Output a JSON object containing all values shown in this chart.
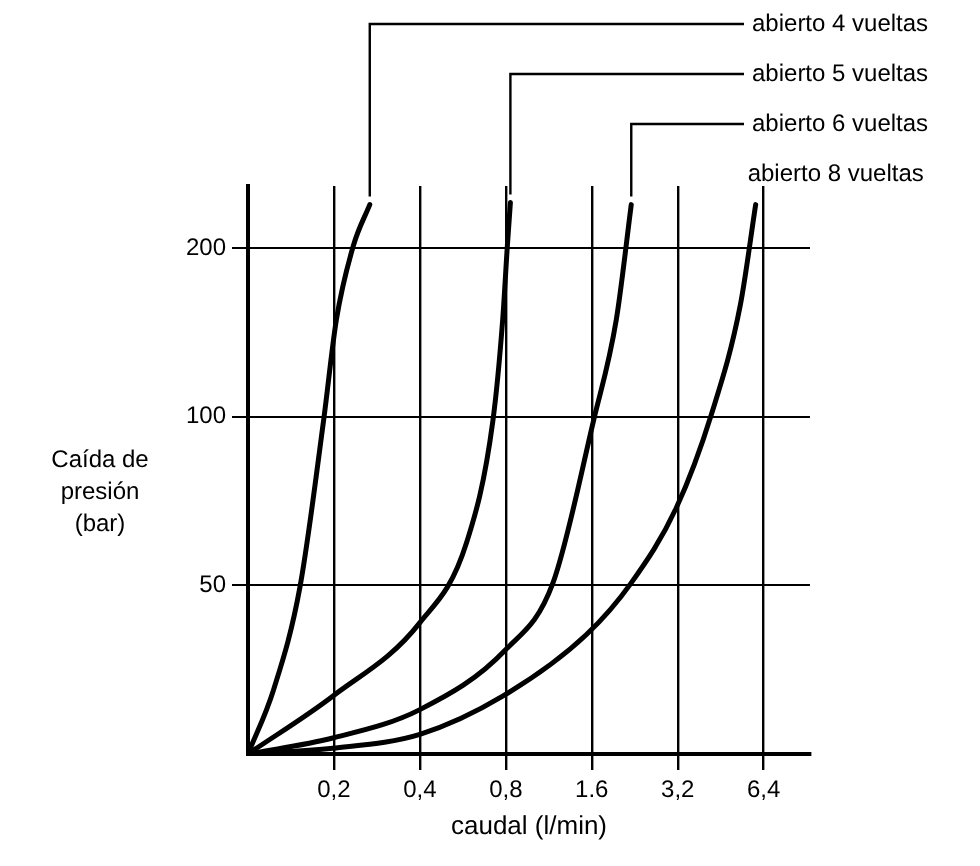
{
  "chart_data": {
    "type": "line",
    "xlabel": "caudal (l/min)",
    "ylabel": "Caída de presión (bar)",
    "log": "xy",
    "grid": true,
    "legend": false,
    "marker": "none",
    "line_style": "solid",
    "xlim": [
      0.1,
      9.3
    ],
    "ylim": [
      25,
      258
    ],
    "xticks": [
      {
        "value": 0.2,
        "label": "0,2"
      },
      {
        "value": 0.4,
        "label": "0,4"
      },
      {
        "value": 0.8,
        "label": "0,8"
      },
      {
        "value": 1.6,
        "label": "1.6"
      },
      {
        "value": 3.2,
        "label": "3,2"
      },
      {
        "value": 6.4,
        "label": "6,4"
      }
    ],
    "yticks": [
      50,
      100,
      200
    ],
    "series": [
      {
        "name": "abierto 4 vueltas",
        "color": "#000000",
        "x": [
          0.1,
          0.123,
          0.152,
          0.184,
          0.204,
          0.234,
          0.267
        ],
        "values": [
          25,
          32.6,
          49.6,
          98.5,
          149,
          202,
          239
        ]
      },
      {
        "name": "abierto 5 vueltas",
        "color": "#000000",
        "x": [
          0.1,
          0.198,
          0.4,
          0.583,
          0.72,
          0.78,
          0.81,
          0.83
        ],
        "values": [
          25,
          31.7,
          42.9,
          59.6,
          98,
          149,
          202,
          241
        ]
      },
      {
        "name": "abierto 6 vueltas",
        "color": "#000000",
        "x": [
          0.1,
          0.198,
          0.4,
          0.8,
          1.17,
          1.62,
          1.95,
          2.2
        ],
        "values": [
          25,
          26.7,
          30,
          38.4,
          50.5,
          98,
          149,
          239
        ]
      },
      {
        "name": "abierto 8 vueltas",
        "color": "#000000",
        "x": [
          0.1,
          0.198,
          0.4,
          0.78,
          1.53,
          2.2,
          3.17,
          4.2,
          5.3,
          6.0
        ],
        "values": [
          25,
          25.6,
          27.1,
          31.7,
          40.8,
          50.5,
          68.9,
          101,
          158,
          239
        ]
      }
    ]
  }
}
